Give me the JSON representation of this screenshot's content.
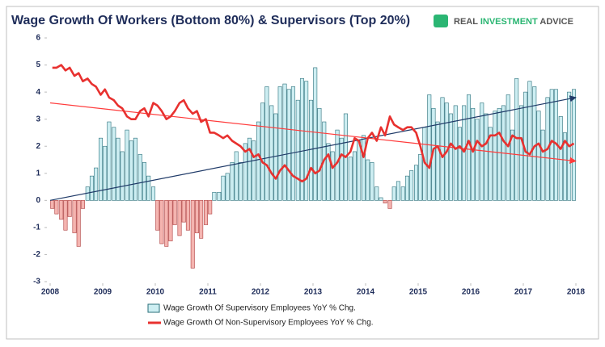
{
  "chart_data": {
    "type": "bar",
    "title": "Wage Growth Of Workers (Bottom 80%) & Supervisors (Top 20%)",
    "logo": [
      "REAL",
      "INVESTMENT",
      "ADVICE"
    ],
    "x": [
      2008.0,
      2008.08,
      2008.17,
      2008.25,
      2008.33,
      2008.42,
      2008.5,
      2008.58,
      2008.67,
      2008.75,
      2008.83,
      2008.92,
      2009.0,
      2009.08,
      2009.17,
      2009.25,
      2009.33,
      2009.42,
      2009.5,
      2009.58,
      2009.67,
      2009.75,
      2009.83,
      2009.92,
      2010.0,
      2010.08,
      2010.17,
      2010.25,
      2010.33,
      2010.42,
      2010.5,
      2010.58,
      2010.67,
      2010.75,
      2010.83,
      2010.92,
      2011.0,
      2011.08,
      2011.17,
      2011.25,
      2011.33,
      2011.42,
      2011.5,
      2011.58,
      2011.67,
      2011.75,
      2011.83,
      2011.92,
      2012.0,
      2012.08,
      2012.17,
      2012.25,
      2012.33,
      2012.42,
      2012.5,
      2012.58,
      2012.67,
      2012.75,
      2012.83,
      2012.92,
      2013.0,
      2013.08,
      2013.17,
      2013.25,
      2013.33,
      2013.42,
      2013.5,
      2013.58,
      2013.67,
      2013.75,
      2013.83,
      2013.92,
      2014.0,
      2014.08,
      2014.17,
      2014.25,
      2014.33,
      2014.42,
      2014.5,
      2014.58,
      2014.67,
      2014.75,
      2014.83,
      2014.92,
      2015.0,
      2015.08,
      2015.17,
      2015.25,
      2015.33,
      2015.42,
      2015.5,
      2015.58,
      2015.67,
      2015.75,
      2015.83,
      2015.92,
      2016.0,
      2016.08,
      2016.17,
      2016.25,
      2016.33,
      2016.42,
      2016.5,
      2016.58,
      2016.67,
      2016.75,
      2016.83,
      2016.92,
      2017.0,
      2017.08,
      2017.17,
      2017.25,
      2017.33,
      2017.42,
      2017.5,
      2017.58,
      2017.67,
      2017.75,
      2017.83,
      2017.92
    ],
    "series": [
      {
        "name": "Wage Growth Of Supervisory Employees YoY % Chg.",
        "type": "bar",
        "color": "#cdeef2",
        "stroke": "#2a6f7a",
        "negative_color": "#f4b4b0",
        "negative_stroke": "#b04040",
        "values": [
          -0.3,
          -0.5,
          -0.7,
          -1.1,
          -0.6,
          -1.2,
          -1.7,
          -0.3,
          0.5,
          0.9,
          1.2,
          2.3,
          2.0,
          2.9,
          2.7,
          2.3,
          1.8,
          2.6,
          2.2,
          2.3,
          1.7,
          1.4,
          0.9,
          0.5,
          -1.1,
          -1.6,
          -1.7,
          -1.5,
          -0.9,
          -1.3,
          -0.8,
          -1.1,
          -2.5,
          -1.2,
          -1.4,
          -0.9,
          -0.5,
          0.3,
          0.3,
          0.9,
          1.0,
          1.4,
          1.8,
          1.4,
          2.1,
          2.3,
          2.2,
          2.9,
          3.6,
          4.2,
          3.5,
          3.2,
          4.2,
          4.3,
          4.1,
          4.2,
          3.7,
          4.5,
          4.4,
          3.7,
          4.9,
          3.4,
          2.9,
          2.1,
          1.8,
          2.6,
          2.3,
          3.2,
          1.6,
          1.8,
          2.2,
          2.4,
          1.5,
          1.4,
          0.5,
          0.1,
          -0.1,
          -0.3,
          0.5,
          0.7,
          0.5,
          0.9,
          1.1,
          1.3,
          1.7,
          2.7,
          3.9,
          3.4,
          2.9,
          3.8,
          3.6,
          3.2,
          3.5,
          2.7,
          3.5,
          3.9,
          3.4,
          3.0,
          3.6,
          3.2,
          2.7,
          3.3,
          3.4,
          3.5,
          3.9,
          2.6,
          4.5,
          3.5,
          4.0,
          4.4,
          4.2,
          3.3,
          2.6,
          3.8,
          4.1,
          4.1,
          3.1,
          2.5,
          4.0,
          4.1
        ]
      },
      {
        "name": "Wage Growth Of Non-Supervisory Employees YoY % Chg.",
        "type": "line",
        "color": "#e8312f",
        "values": [
          4.9,
          4.9,
          5.0,
          4.8,
          4.9,
          4.6,
          4.7,
          4.4,
          4.5,
          4.3,
          4.2,
          3.9,
          4.1,
          3.8,
          3.7,
          3.5,
          3.4,
          3.1,
          3.0,
          3.0,
          3.3,
          3.4,
          3.1,
          3.6,
          3.5,
          3.3,
          3.0,
          3.1,
          3.3,
          3.6,
          3.7,
          3.4,
          3.2,
          3.3,
          2.9,
          3.0,
          2.5,
          2.5,
          2.4,
          2.3,
          2.4,
          2.2,
          2.1,
          2.0,
          1.8,
          1.9,
          1.6,
          1.7,
          1.4,
          1.3,
          1.0,
          0.8,
          1.1,
          1.3,
          1.1,
          0.9,
          0.8,
          0.7,
          0.8,
          1.2,
          1.0,
          1.1,
          1.5,
          1.7,
          1.2,
          1.4,
          1.7,
          1.6,
          1.8,
          2.3,
          2.2,
          1.6,
          2.3,
          2.5,
          2.2,
          2.7,
          2.4,
          3.1,
          2.8,
          2.7,
          2.6,
          2.7,
          2.7,
          2.5,
          2.0,
          1.4,
          1.2,
          1.9,
          2.0,
          1.6,
          1.8,
          2.1,
          1.9,
          2.0,
          1.8,
          2.2,
          1.8,
          2.2,
          2.0,
          2.1,
          2.4,
          2.4,
          2.5,
          2.2,
          2.0,
          2.4,
          2.3,
          2.3,
          1.8,
          1.7,
          2.0,
          2.1,
          1.8,
          1.9,
          2.2,
          2.1,
          1.9,
          2.2,
          2.0,
          2.1
        ]
      }
    ],
    "trend_lines": [
      {
        "color": "#1f3a68",
        "x": [
          2008,
          2018
        ],
        "values": [
          0,
          3.8
        ]
      },
      {
        "color": "#ff3b3b",
        "x": [
          2008,
          2018
        ],
        "values": [
          3.6,
          1.45
        ]
      }
    ],
    "xlim": [
      2008,
      2018
    ],
    "xticks": [
      2008,
      2009,
      2010,
      2011,
      2012,
      2013,
      2014,
      2015,
      2016,
      2017,
      2018
    ],
    "ylim": [
      -3,
      6
    ],
    "yticks": [
      -3,
      -2,
      -1,
      0,
      1,
      2,
      3,
      4,
      5,
      6
    ]
  }
}
